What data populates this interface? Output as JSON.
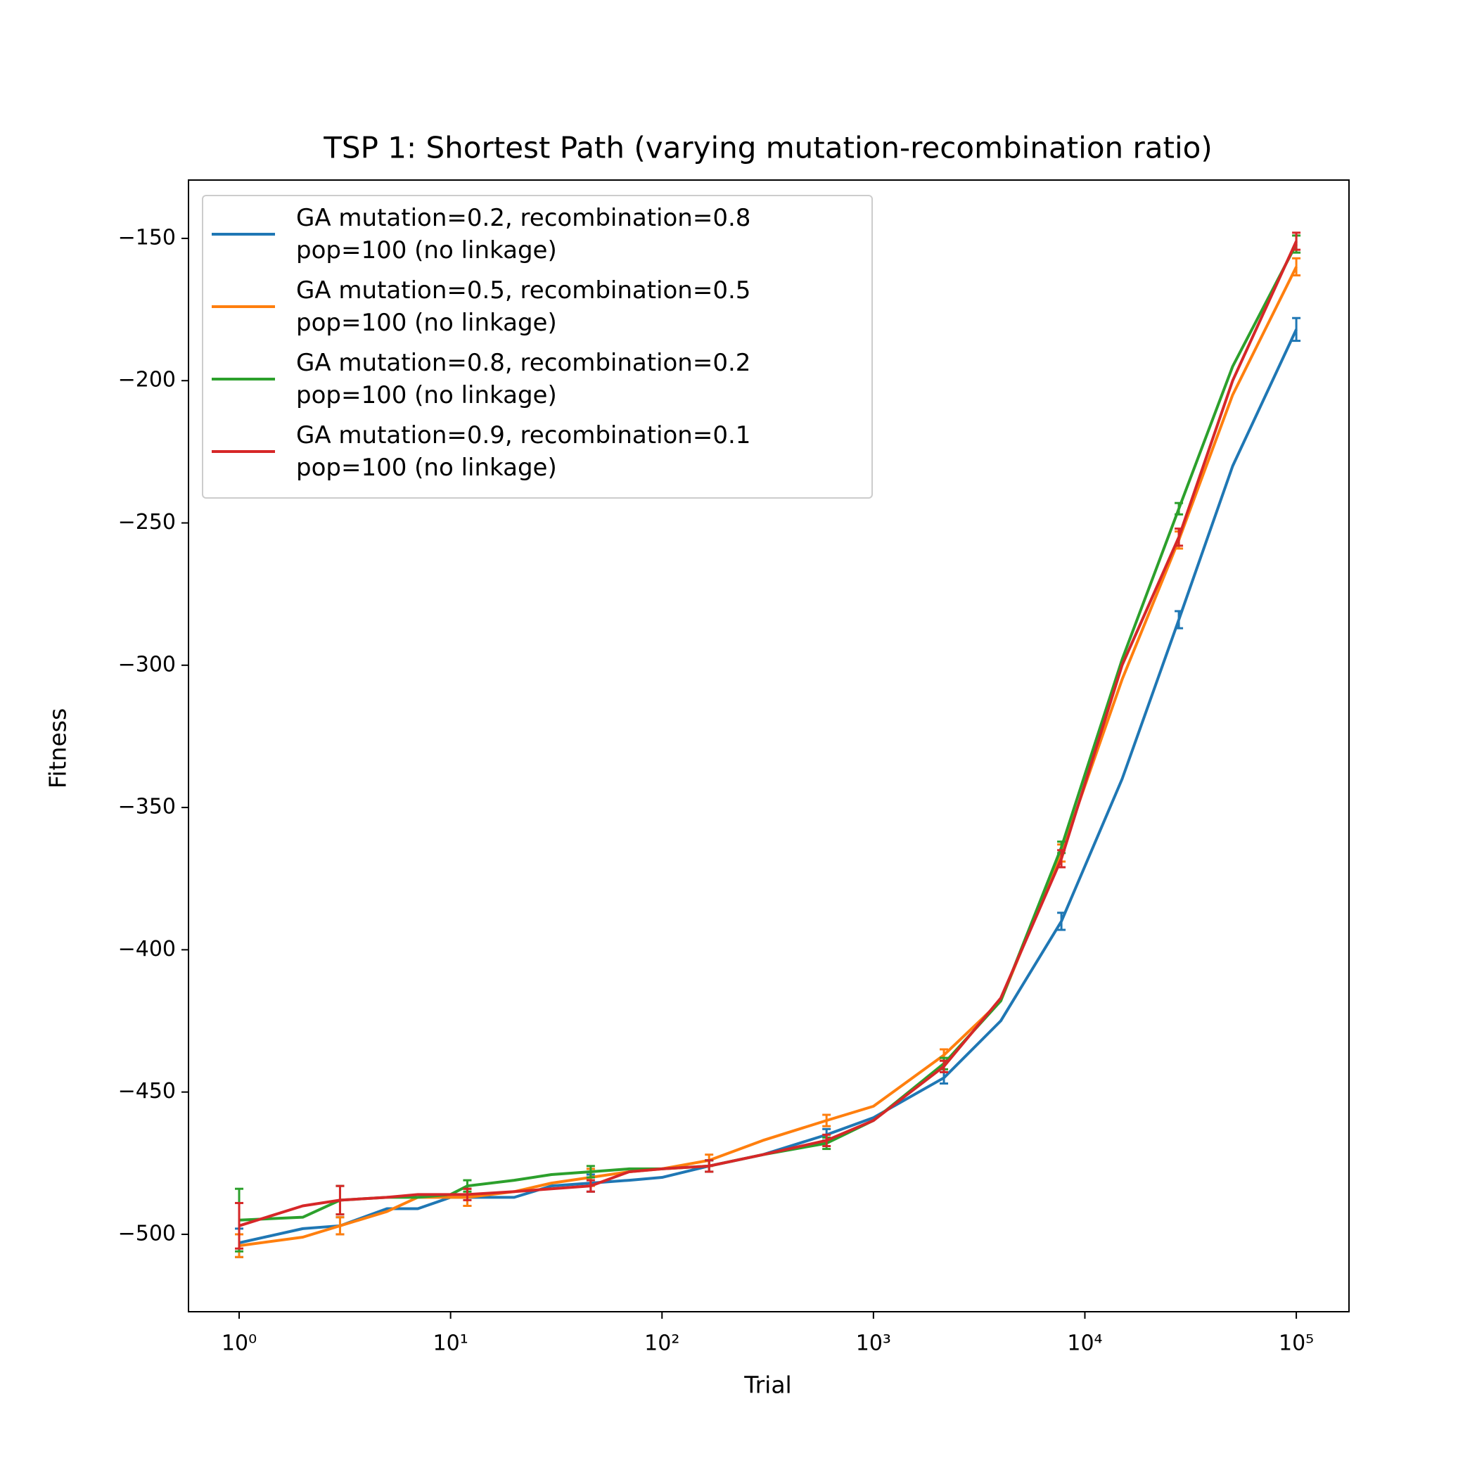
{
  "chart_data": {
    "type": "line",
    "title": "TSP 1: Shortest Path (varying mutation-recombination ratio)",
    "xlabel": "Trial",
    "ylabel": "Fitness",
    "xscale": "log",
    "x": [
      1,
      2,
      3,
      5,
      7,
      10,
      12,
      20,
      30,
      46,
      70,
      100,
      167,
      300,
      600,
      1000,
      2154,
      4000,
      7743,
      15000,
      27826,
      50000,
      100000
    ],
    "xlim": [
      0.576,
      177500
    ],
    "xticks": [
      {
        "value": 1,
        "label": "10⁰"
      },
      {
        "value": 10,
        "label": "10¹"
      },
      {
        "value": 100,
        "label": "10²"
      },
      {
        "value": 1000,
        "label": "10³"
      },
      {
        "value": 10000,
        "label": "10⁴"
      },
      {
        "value": 100000,
        "label": "10⁵"
      }
    ],
    "ylim": [
      -527.2,
      -129.5
    ],
    "yticks": [
      {
        "value": -500,
        "label": "−500"
      },
      {
        "value": -450,
        "label": "−450"
      },
      {
        "value": -400,
        "label": "−400"
      },
      {
        "value": -350,
        "label": "−350"
      },
      {
        "value": -300,
        "label": "−300"
      },
      {
        "value": -250,
        "label": "−250"
      },
      {
        "value": -200,
        "label": "−200"
      },
      {
        "value": -150,
        "label": "−150"
      }
    ],
    "legend": "upper left",
    "series": [
      {
        "name": "GA mutation=0.2, recombination=0.8\npop=100 (no linkage)",
        "color": "#1f77b4",
        "values": [
          -503,
          -498,
          -497,
          -491,
          -491,
          -487,
          -487,
          -487,
          -483,
          -482,
          -481,
          -480,
          -476,
          -472,
          -465,
          -459,
          -445,
          -425,
          -390,
          -340,
          -284,
          -230,
          -182
        ],
        "errors": [
          5,
          null,
          3,
          null,
          null,
          null,
          3,
          null,
          null,
          3,
          null,
          null,
          2,
          null,
          2,
          null,
          2,
          null,
          3,
          null,
          3,
          null,
          4
        ]
      },
      {
        "name": "GA mutation=0.5, recombination=0.5\npop=100 (no linkage)",
        "color": "#ff7f0e",
        "values": [
          -504,
          -501,
          -497,
          -492,
          -487,
          -487,
          -487,
          -485,
          -482,
          -480,
          -478,
          -477,
          -474,
          -467,
          -460,
          -455,
          -437,
          -418,
          -366,
          -305,
          -256,
          -205,
          -160
        ],
        "errors": [
          4,
          null,
          3,
          null,
          null,
          null,
          3,
          null,
          null,
          3,
          null,
          null,
          2,
          null,
          2,
          null,
          2,
          null,
          3,
          null,
          3,
          null,
          3
        ]
      },
      {
        "name": "GA mutation=0.8, recombination=0.2\npop=100 (no linkage)",
        "color": "#2ca02c",
        "values": [
          -495,
          -494,
          -488,
          -487,
          -487,
          -486,
          -483,
          -481,
          -479,
          -478,
          -477,
          -477,
          -476,
          -472,
          -468,
          -460,
          -440,
          -418,
          -364,
          -298,
          -245,
          -195,
          -152
        ],
        "errors": [
          11,
          null,
          5,
          null,
          null,
          null,
          2,
          null,
          null,
          2,
          null,
          null,
          2,
          null,
          2,
          null,
          2,
          null,
          2,
          null,
          2,
          null,
          3
        ]
      },
      {
        "name": "GA mutation=0.9, recombination=0.1\npop=100 (no linkage)",
        "color": "#d62728",
        "values": [
          -497,
          -490,
          -488,
          -487,
          -486,
          -486,
          -486,
          -485,
          -484,
          -483,
          -478,
          -477,
          -476,
          -472,
          -467,
          -460,
          -441,
          -417,
          -368,
          -300,
          -255,
          -200,
          -151
        ],
        "errors": [
          8,
          null,
          5,
          null,
          null,
          null,
          2,
          null,
          null,
          2,
          null,
          null,
          2,
          null,
          2,
          null,
          2,
          null,
          3,
          null,
          3,
          null,
          3
        ]
      }
    ]
  }
}
